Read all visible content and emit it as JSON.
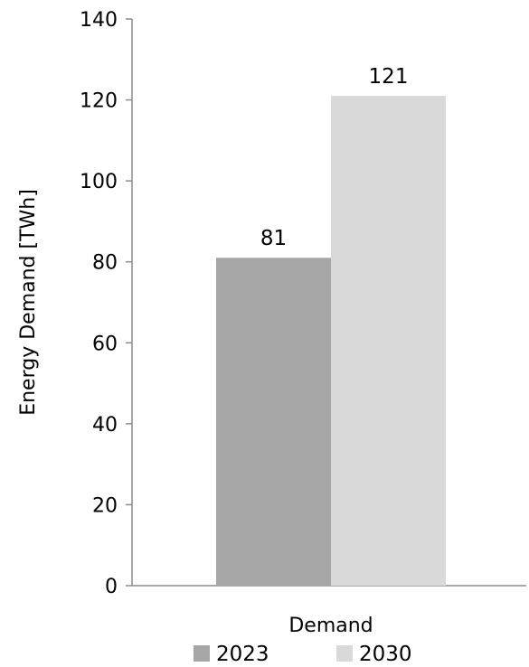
{
  "chart_data": {
    "type": "bar",
    "title": "",
    "xlabel": "",
    "ylabel": "Energy Demand [TWh]",
    "categories": [
      "Demand"
    ],
    "series": [
      {
        "name": "2023",
        "values": [
          81
        ],
        "color": "#a6a6a6"
      },
      {
        "name": "2030",
        "values": [
          121
        ],
        "color": "#d9d9d9"
      }
    ],
    "ylim": [
      0,
      140
    ],
    "yticks": [
      0,
      20,
      40,
      60,
      80,
      100,
      120,
      140
    ],
    "data_labels": [
      "81",
      "121"
    ],
    "grid": false,
    "legend_position": "bottom",
    "axis_color": "#8c8c8c"
  }
}
